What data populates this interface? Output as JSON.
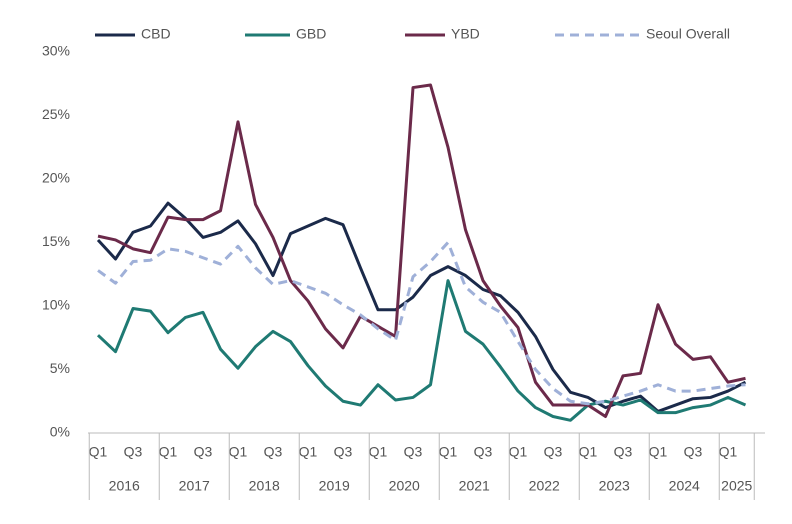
{
  "chart_data": {
    "type": "line",
    "categories": [
      "Q1",
      null,
      "Q3",
      null,
      "Q1",
      null,
      "Q3",
      null,
      "Q1",
      null,
      "Q3",
      null,
      "Q1",
      null,
      "Q3",
      null,
      "Q1",
      null,
      "Q3",
      null,
      "Q1",
      null,
      "Q3",
      null,
      "Q1",
      null,
      "Q3",
      null,
      "Q1",
      null,
      "Q3",
      null,
      "Q1",
      null,
      "Q3",
      null,
      "Q1",
      null
    ],
    "years": [
      "2016",
      "2017",
      "2018",
      "2019",
      "2020",
      "2021",
      "2022",
      "2023",
      "2024",
      "2025"
    ],
    "ylim": [
      0,
      30
    ],
    "yticks": [
      {
        "value": 0,
        "label": "0%"
      },
      {
        "value": 5,
        "label": "5%"
      },
      {
        "value": 10,
        "label": "10%"
      },
      {
        "value": 15,
        "label": "15%"
      },
      {
        "value": 20,
        "label": "20%"
      },
      {
        "value": 25,
        "label": "25%"
      },
      {
        "value": 30,
        "label": "30%"
      }
    ],
    "series": [
      {
        "name": "CBD",
        "color": "#1b2a4a",
        "dashed": false,
        "values": [
          15.2,
          13.7,
          15.8,
          16.3,
          18.1,
          16.9,
          15.4,
          15.8,
          16.7,
          14.9,
          12.4,
          15.7,
          16.3,
          16.9,
          16.4,
          13.0,
          9.7,
          9.7,
          10.7,
          12.4,
          13.1,
          12.4,
          11.3,
          10.8,
          9.5,
          7.6,
          5.0,
          3.2,
          2.8,
          2.0,
          2.5,
          2.9,
          1.7,
          2.2,
          2.7,
          2.8,
          3.3,
          4.0
        ]
      },
      {
        "name": "GBD",
        "color": "#1f7a73",
        "dashed": false,
        "values": [
          7.7,
          6.4,
          9.8,
          9.6,
          7.9,
          9.1,
          9.5,
          6.6,
          5.1,
          6.8,
          8.0,
          7.2,
          5.3,
          3.7,
          2.5,
          2.2,
          3.8,
          2.6,
          2.8,
          3.8,
          12.0,
          8.0,
          7.0,
          5.2,
          3.3,
          2.0,
          1.3,
          1.0,
          2.2,
          2.5,
          2.2,
          2.6,
          1.6,
          1.6,
          2.0,
          2.2,
          2.8,
          2.2
        ]
      },
      {
        "name": "YBD",
        "color": "#6b2a4a",
        "dashed": false,
        "values": [
          15.5,
          15.2,
          14.5,
          14.2,
          17.0,
          16.8,
          16.8,
          17.5,
          24.5,
          18.0,
          15.4,
          12.0,
          10.4,
          8.2,
          6.7,
          9.2,
          8.4,
          7.6,
          27.2,
          27.4,
          22.5,
          16.0,
          12.0,
          10.0,
          8.3,
          4.0,
          2.2,
          2.2,
          2.2,
          1.3,
          4.5,
          4.7,
          10.1,
          7.0,
          5.8,
          6.0,
          4.0,
          4.3
        ]
      },
      {
        "name": "Seoul Overall",
        "color": "#9fb0d8",
        "dashed": true,
        "values": [
          12.8,
          11.8,
          13.5,
          13.6,
          14.5,
          14.3,
          13.8,
          13.3,
          14.7,
          13.0,
          11.7,
          12.0,
          11.5,
          11.0,
          10.1,
          9.3,
          8.2,
          7.3,
          12.3,
          13.5,
          15.0,
          11.5,
          10.3,
          9.5,
          7.2,
          5.0,
          3.5,
          2.5,
          2.3,
          2.5,
          2.9,
          3.3,
          3.8,
          3.3,
          3.3,
          3.5,
          3.7,
          3.8
        ]
      }
    ]
  }
}
